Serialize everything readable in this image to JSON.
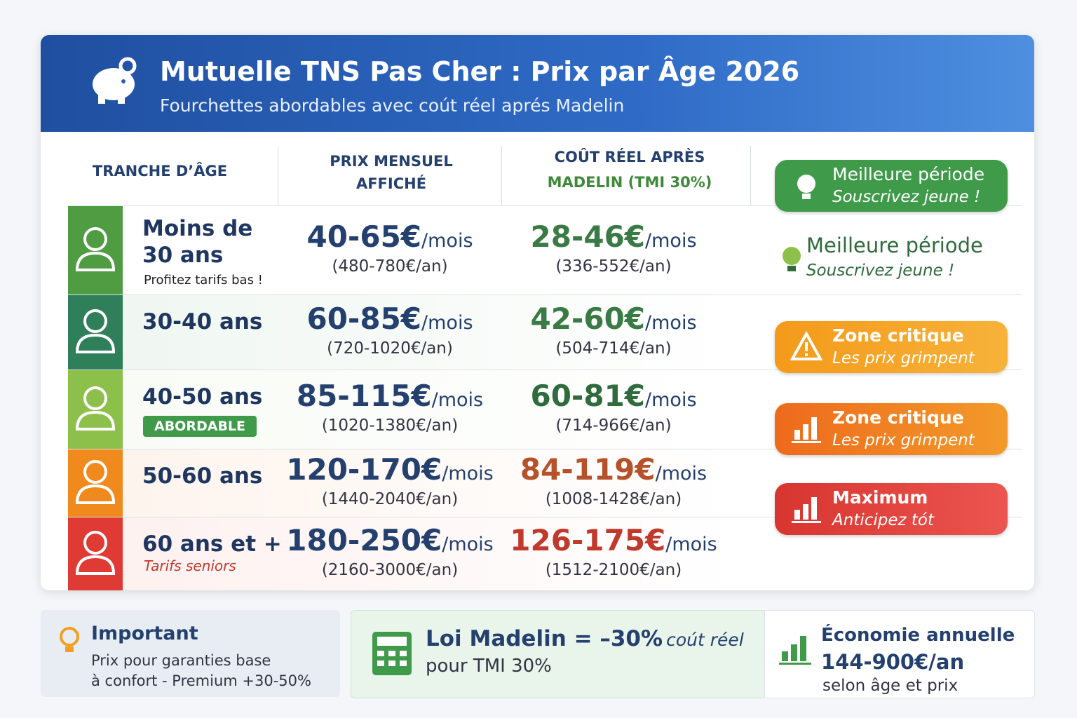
{
  "header": {
    "title": "Mutuelle TNS Pas Cher : Prix par Âge 2026",
    "subtitle": "Fourchettes abordables avec coút réel aprés Madelin"
  },
  "table": {
    "columns": [
      "TRANCHE D’ÂGE",
      "PRIX MENSUEL AFFICHÉ",
      "COÛT RÉEL APRÈS",
      "MADELIN (TMI 30%)"
    ],
    "rows": [
      {
        "age": "Moins de 30 ans",
        "note": "Profitez tarifs bas !",
        "price": "40-65€",
        "price_unit": "/mois",
        "price_annual": "(480-780€/an)",
        "real": "28-46€",
        "real_unit": "/mois",
        "real_annual": "(336-552€/an)"
      },
      {
        "age": "30-40 ans",
        "price": "60-85€",
        "price_unit": "/mois",
        "price_annual": "(720-1020€/an)",
        "real": "42-60€",
        "real_unit": "/mois",
        "real_annual": "(504-714€/an)"
      },
      {
        "age": "40-50 ans",
        "tag": "ABORDABLE",
        "price": "85-115€",
        "price_unit": "/mois",
        "price_annual": "(1020-1380€/an)",
        "real": "60-81€",
        "real_unit": "/mois",
        "real_annual": "(714-966€/an)"
      },
      {
        "age": "50-60 ans",
        "price": "120-170€",
        "price_unit": "/mois",
        "price_annual": "(1440-2040€/an)",
        "real": "84-119€",
        "real_unit": "/mois",
        "real_annual": "(1008-1428€/an)"
      },
      {
        "age": "60 ans et +",
        "note": "Tarifs seniors",
        "price": "180-250€",
        "price_unit": "/mois",
        "price_annual": "(2160-3000€/an)",
        "real": "126-175€",
        "real_unit": "/mois",
        "real_annual": "(1512-2100€/an)"
      }
    ],
    "status": [
      {
        "title": "Meilleure période",
        "subtitle": "Souscrivez jeune !"
      },
      {
        "title": "Meilleure période",
        "subtitle": "Souscrivez jeune !"
      },
      {
        "title": "Zone critique",
        "subtitle": "Les prix grimpent"
      },
      {
        "title": "Zone critique",
        "subtitle": "Les prix grimpent"
      },
      {
        "title": "Maximum",
        "subtitle": "Anticipez tót"
      }
    ]
  },
  "footer": {
    "important": {
      "title": "Important",
      "lines": [
        "Prix pour garanties base",
        "à confort - Premium +30-50%"
      ]
    },
    "madelin": {
      "title": "Loi Madelin = –30%",
      "title_suffix": "coút réel",
      "line": "pour TMI 30%"
    },
    "savings": {
      "title": "Économie annuelle",
      "amount": "144-900€/an",
      "line": "selon âge et prix"
    }
  }
}
